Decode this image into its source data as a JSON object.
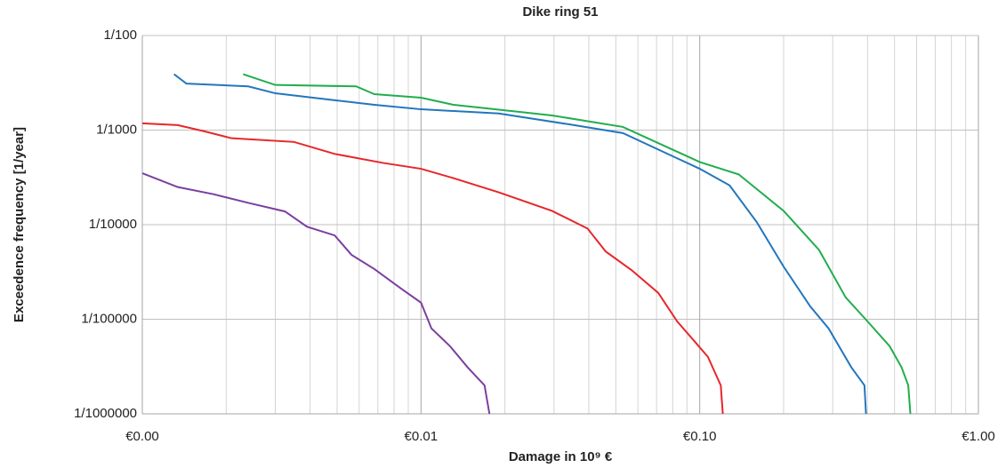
{
  "chart_data": {
    "type": "line",
    "title": "Dike ring 51",
    "x_label": "Damage in 10⁹ €",
    "y_label": "Exceedence frequency [1/year]",
    "x_log": true,
    "y_log": true,
    "grid": true,
    "xlim": [
      0.001,
      1
    ],
    "ylim": [
      1e-06,
      0.01
    ],
    "xticks": [
      {
        "value": 0.001,
        "label": "€0.00"
      },
      {
        "value": 0.01,
        "label": "€0.01"
      },
      {
        "value": 0.1,
        "label": "€0.10"
      },
      {
        "value": 1,
        "label": "€1.00"
      }
    ],
    "xminorticks": [
      0.002,
      0.003,
      0.004,
      0.005,
      0.006,
      0.007,
      0.008,
      0.009,
      0.02,
      0.03,
      0.04,
      0.05,
      0.06,
      0.07,
      0.08,
      0.09,
      0.2,
      0.3,
      0.4,
      0.5,
      0.6,
      0.7,
      0.8,
      0.9
    ],
    "yticks": [
      {
        "value": 0.01,
        "label": "1/100"
      },
      {
        "value": 0.001,
        "label": "1/1000"
      },
      {
        "value": 0.0001,
        "label": "1/10000"
      },
      {
        "value": 1e-05,
        "label": "1/100000"
      },
      {
        "value": 1e-06,
        "label": "1/1000000"
      }
    ],
    "series": [
      {
        "color": "#22ad4e",
        "x": [
          0.0023,
          0.003,
          0.00585,
          0.0068,
          0.01,
          0.0131,
          0.0295,
          0.053,
          0.1,
          0.138,
          0.2,
          0.268,
          0.334,
          0.4,
          0.48,
          0.53,
          0.56,
          0.57
        ],
        "values": [
          0.0039,
          0.003,
          0.0029,
          0.0024,
          0.0022,
          0.00185,
          0.00143,
          0.00108,
          0.00046,
          0.00034,
          0.00014,
          5.4e-05,
          1.7e-05,
          9.5e-06,
          5.2e-06,
          3.1e-06,
          2e-06,
          1e-06
        ]
      },
      {
        "color": "#2276bd",
        "x": [
          0.0013,
          0.00144,
          0.0024,
          0.003,
          0.0049,
          0.0068,
          0.01,
          0.019,
          0.034,
          0.053,
          0.1,
          0.128,
          0.16,
          0.2,
          0.249,
          0.29,
          0.35,
          0.39,
          0.395
        ],
        "values": [
          0.0039,
          0.0031,
          0.0029,
          0.00245,
          0.00207,
          0.00185,
          0.00166,
          0.0015,
          0.00115,
          0.00093,
          0.00039,
          0.00026,
          0.000107,
          3.6e-05,
          1.37e-05,
          8e-06,
          3.1e-06,
          2e-06,
          1e-06
        ]
      },
      {
        "color": "#e8262a",
        "x": [
          0.001,
          0.00134,
          0.00167,
          0.00209,
          0.0035,
          0.0049,
          0.0073,
          0.01,
          0.0131,
          0.019,
          0.0295,
          0.0396,
          0.046,
          0.057,
          0.071,
          0.083,
          0.096,
          0.107,
          0.119,
          0.121
        ],
        "values": [
          0.00118,
          0.00113,
          0.00097,
          0.00082,
          0.00075,
          0.00056,
          0.00045,
          0.00039,
          0.00031,
          0.00022,
          0.00014,
          9.1e-05,
          5.2e-05,
          3.3e-05,
          1.9e-05,
          9.5e-06,
          5.8e-06,
          4e-06,
          2e-06,
          1e-06
        ]
      },
      {
        "color": "#7b3fa0",
        "x": [
          0.001,
          0.00134,
          0.0018,
          0.0024,
          0.00325,
          0.0039,
          0.0049,
          0.00563,
          0.0068,
          0.0085,
          0.01,
          0.0109,
          0.0127,
          0.0147,
          0.0169,
          0.0176
        ],
        "values": [
          0.00035,
          0.00025,
          0.00021,
          0.00017,
          0.000138,
          9.5e-05,
          7.7e-05,
          4.8e-05,
          3.4e-05,
          2.1e-05,
          1.5e-05,
          8e-06,
          5.2e-06,
          3.1e-06,
          2e-06,
          1e-06
        ]
      }
    ]
  }
}
